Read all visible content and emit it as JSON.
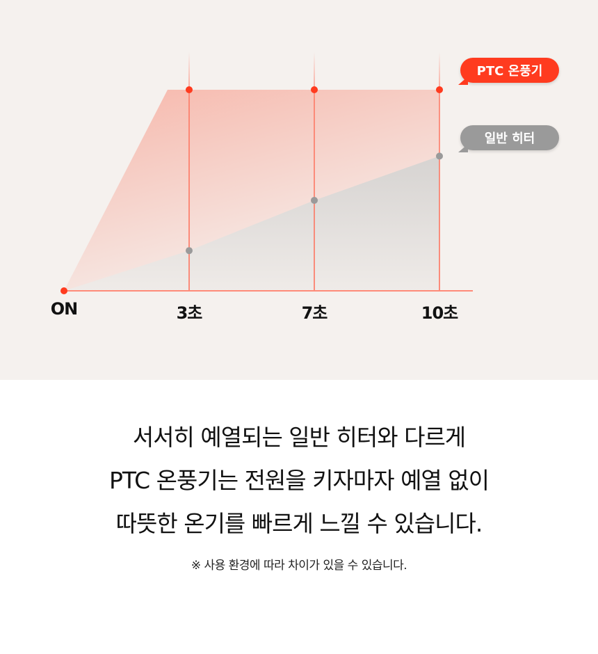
{
  "chart_data": {
    "type": "area",
    "categories": [
      "ON",
      "3초",
      "7초",
      "10초"
    ],
    "series": [
      {
        "name": "PTC 온풍기",
        "values": [
          0,
          100,
          100,
          100
        ],
        "color": "#ff3b1f"
      },
      {
        "name": "일반 히터",
        "values": [
          0,
          20,
          45,
          67
        ],
        "color": "#9a9a9a"
      }
    ],
    "ylim": [
      0,
      100
    ],
    "grid": false,
    "legend": "right"
  },
  "text": {
    "lines": [
      "서서히 예열되는 일반 히터와 다르게",
      "PTC 온풍기는 전원을 키자마자 예열 없이",
      "따뜻한 온기를 빠르게 느낄 수 있습니다."
    ],
    "note": "※ 사용 환경에 따라 차이가 있을 수 있습니다."
  }
}
